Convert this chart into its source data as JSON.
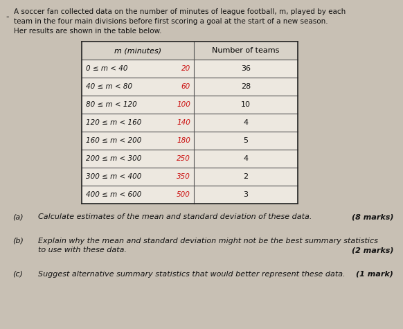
{
  "intro_text_lines": [
    "A soccer fan collected data on the number of minutes of league football, m, played by each",
    "team in the four main divisions before first scoring a goal at the start of a new season.",
    "Her results are shown in the table below."
  ],
  "bullet": "•",
  "table_header": [
    "m (minutes)",
    "Number of teams"
  ],
  "table_rows": [
    [
      "0 ≤ m < 40",
      "20",
      "36"
    ],
    [
      "40 ≤ m < 80",
      "60",
      "28"
    ],
    [
      "80 ≤ m < 120",
      "100",
      "10"
    ],
    [
      "120 ≤ m < 160",
      "140",
      "4"
    ],
    [
      "160 ≤ m < 200",
      "180",
      "5"
    ],
    [
      "200 ≤ m < 300",
      "250",
      "4"
    ],
    [
      "300 ≤ m < 400",
      "350",
      "2"
    ],
    [
      "400 ≤ m < 600",
      "500",
      "3"
    ]
  ],
  "parts": [
    {
      "label": "(a)",
      "text": "Calculate estimates of the mean and standard deviation of these data.",
      "marks": "(8 marks)",
      "extra_line": false
    },
    {
      "label": "(b)",
      "text": "Explain why the mean and standard deviation might not be the best summary statistics\nto use with these data.",
      "marks": "(2 marks)",
      "extra_line": true
    },
    {
      "label": "(c)",
      "text": "Suggest alternative summary statistics that would better represent these data.",
      "marks": "(1 mark)",
      "extra_line": false
    }
  ],
  "bg_color": "#c8c0b4",
  "table_bg": "#ede8e0",
  "header_bg": "#d8d2c8",
  "line_color": "#555555",
  "text_color": "#111111",
  "red_color": "#cc1111"
}
